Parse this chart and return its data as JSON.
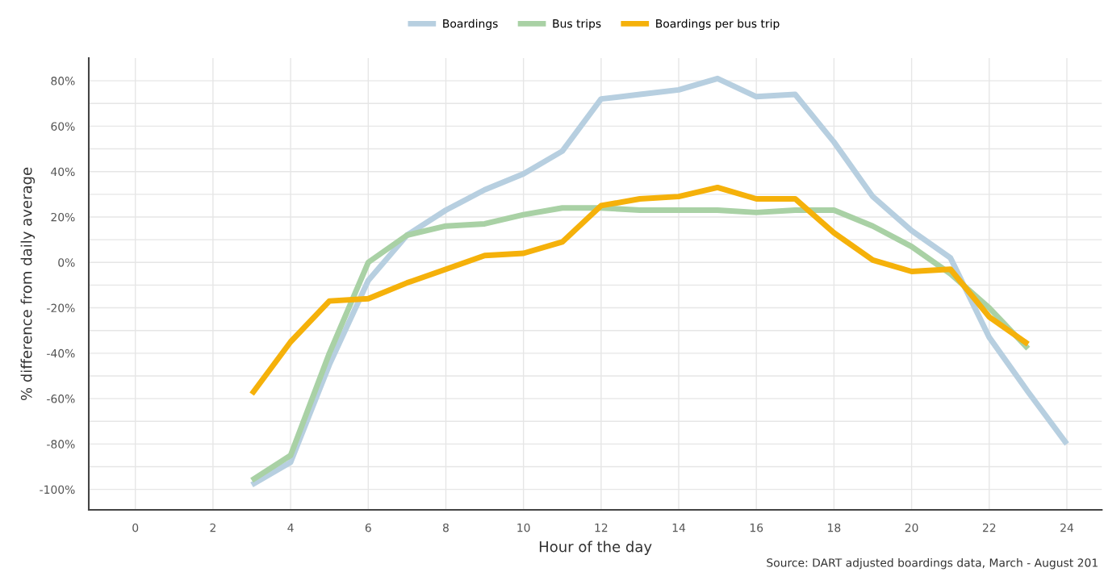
{
  "chart_data": {
    "type": "line",
    "xlabel": "Hour of the day",
    "ylabel": "% difference from daily average",
    "annotations": [
      "Source: DART adjusted boardings data, March - August 201"
    ],
    "x": [
      3,
      4,
      5,
      6,
      7,
      8,
      9,
      10,
      11,
      12,
      13,
      14,
      15,
      16,
      17,
      18,
      19,
      20,
      21,
      22,
      23,
      24
    ],
    "series": [
      {
        "name": "Boardings",
        "color": "#b7cfe0",
        "values": [
          -98,
          -88,
          -45,
          -8,
          12,
          23,
          32,
          39,
          49,
          72,
          74,
          76,
          81,
          73,
          74,
          53,
          29,
          14,
          2,
          -33,
          -57,
          -80
        ]
      },
      {
        "name": "Bus trips",
        "color": "#a9d1a5",
        "values": [
          -96,
          -85,
          -40,
          0,
          12,
          16,
          17,
          21,
          24,
          24,
          23,
          23,
          23,
          22,
          23,
          23,
          16,
          7,
          -5,
          -20,
          -38,
          null
        ]
      },
      {
        "name": "Boardings per bus trip",
        "color": "#f5b10a",
        "values": [
          -58,
          -35,
          -17,
          -16,
          -9,
          -3,
          3,
          4,
          9,
          25,
          28,
          29,
          33,
          28,
          28,
          13,
          1,
          -4,
          -3,
          -24,
          -36,
          null
        ]
      }
    ],
    "xlim": [
      -1.2,
      24.9
    ],
    "xticks": [
      0,
      2,
      4,
      6,
      8,
      10,
      12,
      14,
      16,
      18,
      20,
      22,
      24
    ],
    "ylim": [
      -109,
      90
    ],
    "yticks": [
      {
        "value": -100,
        "label": "-100%"
      },
      {
        "value": -90,
        "label": null
      },
      {
        "value": -80,
        "label": "-80%"
      },
      {
        "value": -70,
        "label": null
      },
      {
        "value": -60,
        "label": "-60%"
      },
      {
        "value": -50,
        "label": null
      },
      {
        "value": -40,
        "label": "-40%"
      },
      {
        "value": -30,
        "label": null
      },
      {
        "value": -20,
        "label": "-20%"
      },
      {
        "value": -10,
        "label": null
      },
      {
        "value": 0,
        "label": "0%"
      },
      {
        "value": 10,
        "label": null
      },
      {
        "value": 20,
        "label": "20%"
      },
      {
        "value": 30,
        "label": null
      },
      {
        "value": 40,
        "label": "40%"
      },
      {
        "value": 50,
        "label": null
      },
      {
        "value": 60,
        "label": "60%"
      },
      {
        "value": 70,
        "label": null
      },
      {
        "value": 80,
        "label": "80%"
      }
    ],
    "grid": true,
    "legend": "top",
    "line_style": "solid",
    "marker": "none"
  }
}
